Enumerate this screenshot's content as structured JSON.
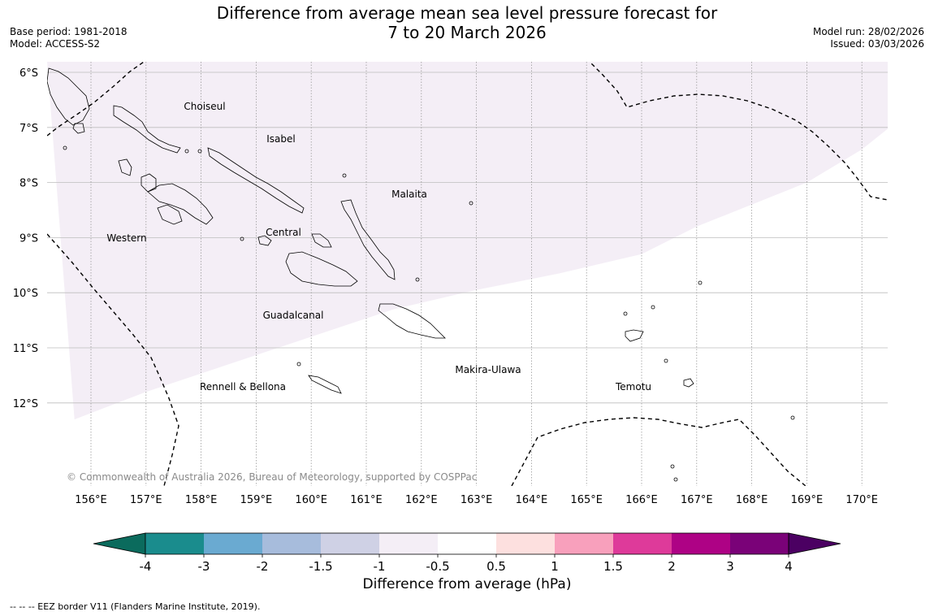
{
  "title_line1": "Difference from average mean sea level pressure forecast for",
  "title_line2": "7 to 20 March 2026",
  "meta": {
    "base_period": "Base period: 1981-2018",
    "model": "Model: ACCESS-S2",
    "model_run": "Model run: 28/02/2026",
    "issued": "Issued: 03/03/2026"
  },
  "lat_labels": [
    "6°S",
    "7°S",
    "8°S",
    "9°S",
    "10°S",
    "11°S",
    "12°S"
  ],
  "lon_labels": [
    "156°E",
    "157°E",
    "158°E",
    "159°E",
    "160°E",
    "161°E",
    "162°E",
    "163°E",
    "164°E",
    "165°E",
    "166°E",
    "167°E",
    "168°E",
    "169°E",
    "170°E"
  ],
  "regions": [
    "Choiseul",
    "Isabel",
    "Malaita",
    "Western",
    "Central",
    "Guadalcanal",
    "Makira-Ulawa",
    "Rennell & Bellona",
    "Temotu"
  ],
  "anomaly_region": {
    "range_label": "-1 to -0.5",
    "color": "#f4eef6",
    "boundary_points_lonlat": [
      [
        155.7,
        12.3
      ],
      [
        157.0,
        11.8
      ],
      [
        158.5,
        11.3
      ],
      [
        160.0,
        10.8
      ],
      [
        161.5,
        10.3
      ],
      [
        163.0,
        9.95
      ],
      [
        164.5,
        9.65
      ],
      [
        166.0,
        9.3
      ],
      [
        167.0,
        8.8
      ],
      [
        168.0,
        8.4
      ],
      [
        169.0,
        8.0
      ],
      [
        170.0,
        7.4
      ],
      [
        170.5,
        7.0
      ]
    ]
  },
  "colorbar": {
    "title": "Difference from average (hPa)",
    "ticks": [
      "-4",
      "-3",
      "-2",
      "-1.5",
      "-1",
      "-0.5",
      "0.5",
      "1",
      "1.5",
      "2",
      "3",
      "4"
    ],
    "colors": [
      "#1a8c8d",
      "#6aaad1",
      "#a7bcdc",
      "#cfd1e5",
      "#f4eef6",
      "#ffffff",
      "#fde0df",
      "#f8a0bc",
      "#de3a9a",
      "#ae0285",
      "#7a0278"
    ],
    "under_color": "#0b6b5d",
    "over_color": "#4b0062"
  },
  "copyright": "© Commonwealth of Australia 2026, Bureau of Meteorology, supported by COSPPac",
  "footnote": "--  --  -- EEZ border V11 (Flanders Marine Institute, 2019)."
}
